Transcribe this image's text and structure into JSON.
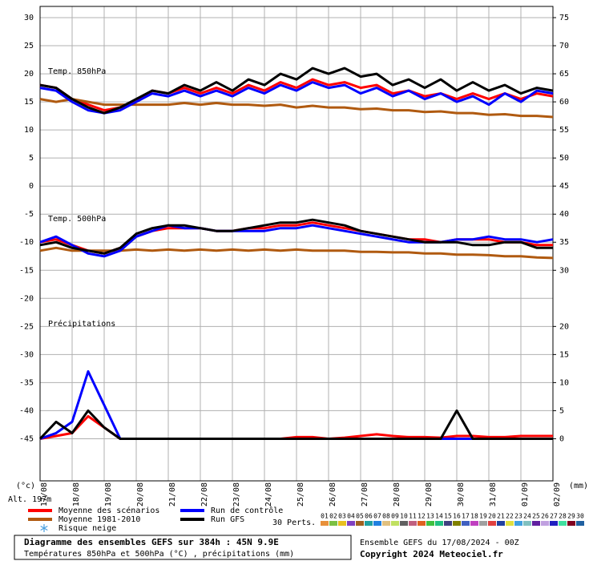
{
  "chart_data": {
    "type": "line",
    "panel_labels": {
      "t850": "Temp. 850hPa",
      "t500": "Temp. 500hPa",
      "precip": "Précipitations"
    },
    "x": [
      0,
      12,
      24,
      36,
      48,
      60,
      72,
      84,
      96,
      108,
      120,
      132,
      144,
      156,
      168,
      180,
      192,
      204,
      216,
      228,
      240,
      252,
      264,
      276,
      288,
      300,
      312,
      324,
      336,
      348,
      360,
      372,
      384
    ],
    "xlim": [
      0,
      384
    ],
    "xticks": [
      {
        "value": 0,
        "label": "17/08"
      },
      {
        "value": 24,
        "label": "18/08"
      },
      {
        "value": 48,
        "label": "19/08"
      },
      {
        "value": 72,
        "label": "20/08"
      },
      {
        "value": 96,
        "label": "21/08"
      },
      {
        "value": 120,
        "label": "22/08"
      },
      {
        "value": 144,
        "label": "23/08"
      },
      {
        "value": 168,
        "label": "24/08"
      },
      {
        "value": 192,
        "label": "25/08"
      },
      {
        "value": 216,
        "label": "26/08"
      },
      {
        "value": 240,
        "label": "27/08"
      },
      {
        "value": 264,
        "label": "28/08"
      },
      {
        "value": 288,
        "label": "29/08"
      },
      {
        "value": 312,
        "label": "30/08"
      },
      {
        "value": 336,
        "label": "31/08"
      },
      {
        "value": 360,
        "label": "01/09"
      },
      {
        "value": 384,
        "label": "02/09"
      }
    ],
    "ylim": [
      -52.5,
      32
    ],
    "yticks": [
      30,
      25,
      20,
      15,
      10,
      5,
      0,
      -5,
      -10,
      -15,
      -20,
      -25,
      -30,
      -35,
      -40,
      -45
    ],
    "y2lim": [
      -7.5,
      77
    ],
    "y2ticks": [
      75,
      70,
      65,
      60,
      55,
      50,
      45,
      40,
      35,
      30,
      20,
      15,
      10,
      5,
      0
    ],
    "ylabel": "(°c)",
    "y2label": "(mm)",
    "grid": true,
    "series": [
      {
        "name": "Moyenne des scénarios",
        "color": "#ff0000",
        "t850": [
          18,
          17.5,
          15.5,
          14.5,
          13.5,
          14,
          15,
          17,
          16.5,
          17.5,
          16.5,
          17.5,
          16.5,
          18,
          17,
          18.5,
          17.5,
          19,
          18,
          18.5,
          17.5,
          18,
          16.5,
          17,
          16,
          16.5,
          15.5,
          16.5,
          15.5,
          16.5,
          15.5,
          16.5,
          16
        ],
        "t500": [
          -10,
          -9.5,
          -10.5,
          -11.5,
          -12,
          -11,
          -9,
          -8,
          -7.5,
          -7.5,
          -7.5,
          -8,
          -8,
          -7.5,
          -7.5,
          -7,
          -7,
          -6.5,
          -7,
          -7.5,
          -8,
          -8.5,
          -9,
          -9.5,
          -9.5,
          -10,
          -9.5,
          -9.5,
          -9.5,
          -10,
          -10,
          -10.5,
          -10.5
        ],
        "precip": [
          0,
          0.5,
          1,
          4,
          2,
          0,
          0,
          0,
          0,
          0,
          0,
          0,
          0,
          0,
          0,
          0,
          0.3,
          0.3,
          0,
          0.2,
          0.5,
          0.8,
          0.5,
          0.3,
          0.3,
          0.2,
          0.5,
          0.5,
          0.3,
          0.3,
          0.5,
          0.5,
          0.5
        ]
      },
      {
        "name": "Moyenne 1981-2010",
        "color": "#b05a10",
        "t850": [
          15.5,
          15,
          15.5,
          15,
          14.5,
          14.5,
          14.5,
          14.5,
          14.5,
          14.8,
          14.5,
          14.8,
          14.5,
          14.5,
          14.3,
          14.5,
          14,
          14.3,
          14,
          14,
          13.7,
          13.8,
          13.5,
          13.5,
          13.2,
          13.3,
          13,
          13,
          12.7,
          12.8,
          12.5,
          12.5,
          12.3
        ],
        "t500": [
          -11.5,
          -11,
          -11.5,
          -11.5,
          -11.5,
          -11.5,
          -11.3,
          -11.5,
          -11.3,
          -11.5,
          -11.3,
          -11.5,
          -11.3,
          -11.5,
          -11.3,
          -11.5,
          -11.3,
          -11.5,
          -11.5,
          -11.5,
          -11.7,
          -11.7,
          -11.8,
          -11.8,
          -12,
          -12,
          -12.2,
          -12.2,
          -12.3,
          -12.5,
          -12.5,
          -12.7,
          -12.8
        ]
      },
      {
        "name": "Run de contrôle",
        "color": "#0000ff",
        "t850": [
          17.5,
          17,
          15,
          13.5,
          13,
          13.5,
          15,
          16.5,
          16,
          17,
          16,
          17,
          16,
          17.5,
          16.5,
          18,
          17,
          18.5,
          17.5,
          18,
          16.5,
          17.5,
          16,
          17,
          15.5,
          16.5,
          15,
          16,
          14.5,
          16.5,
          15,
          17,
          16.5
        ],
        "t500": [
          -10,
          -9,
          -10.5,
          -12,
          -12.5,
          -11.5,
          -9,
          -8,
          -7,
          -7.5,
          -7.5,
          -8,
          -8,
          -8,
          -8,
          -7.5,
          -7.5,
          -7,
          -7.5,
          -8,
          -8.5,
          -9,
          -9.5,
          -10,
          -10,
          -10,
          -9.5,
          -9.5,
          -9,
          -9.5,
          -9.5,
          -10,
          -9.5
        ],
        "precip": [
          0,
          1,
          3,
          12,
          6,
          0,
          0,
          0,
          0,
          0,
          0,
          0,
          0,
          0,
          0,
          0,
          0,
          0,
          0,
          0,
          0,
          0,
          0,
          0,
          0,
          0,
          0,
          0,
          0,
          0,
          0,
          0,
          0
        ]
      },
      {
        "name": "Run GFS",
        "color": "#000000",
        "t850": [
          18,
          17.5,
          15.5,
          14,
          13,
          14,
          15.5,
          17,
          16.5,
          18,
          17,
          18.5,
          17,
          19,
          18,
          20,
          19,
          21,
          20,
          21,
          19.5,
          20,
          18,
          19,
          17.5,
          19,
          17,
          18.5,
          17,
          18,
          16.5,
          17.5,
          17
        ],
        "t500": [
          -10.5,
          -10,
          -11,
          -11.5,
          -12,
          -11,
          -8.5,
          -7.5,
          -7,
          -7,
          -7.5,
          -8,
          -8,
          -7.5,
          -7,
          -6.5,
          -6.5,
          -6,
          -6.5,
          -7,
          -8,
          -8.5,
          -9,
          -9.5,
          -10,
          -10,
          -10,
          -10.5,
          -10.5,
          -10,
          -10,
          -11,
          -11
        ],
        "precip": [
          0,
          3,
          1,
          5,
          2,
          0,
          0,
          0,
          0,
          0,
          0,
          0,
          0,
          0,
          0,
          0,
          0,
          0,
          0,
          0,
          0,
          0,
          0,
          0,
          0,
          0,
          5,
          0,
          0,
          0,
          0,
          0,
          0
        ]
      }
    ],
    "snow_legend": "Risque neige",
    "altitude": "Alt. 197m",
    "perturbations": {
      "label": "30 Perts.",
      "members": [
        {
          "name": "01",
          "color": "#e8903a"
        },
        {
          "name": "02",
          "color": "#7bc043"
        },
        {
          "name": "03",
          "color": "#e8c020"
        },
        {
          "name": "04",
          "color": "#8040c0"
        },
        {
          "name": "05",
          "color": "#a06020"
        },
        {
          "name": "06",
          "color": "#20a0a0"
        },
        {
          "name": "07",
          "color": "#2080e0"
        },
        {
          "name": "08",
          "color": "#e0c080"
        },
        {
          "name": "09",
          "color": "#c0e060"
        },
        {
          "name": "10",
          "color": "#606060"
        },
        {
          "name": "11",
          "color": "#c06080"
        },
        {
          "name": "12",
          "color": "#e06020"
        },
        {
          "name": "13",
          "color": "#40c040"
        },
        {
          "name": "14",
          "color": "#20c080"
        },
        {
          "name": "15",
          "color": "#404080"
        },
        {
          "name": "16",
          "color": "#808000"
        },
        {
          "name": "17",
          "color": "#4060c0"
        },
        {
          "name": "18",
          "color": "#c040c0"
        },
        {
          "name": "19",
          "color": "#a0a0a0"
        },
        {
          "name": "20",
          "color": "#e04040"
        },
        {
          "name": "21",
          "color": "#2040a0"
        },
        {
          "name": "22",
          "color": "#e0e040"
        },
        {
          "name": "23",
          "color": "#40a0e0"
        },
        {
          "name": "24",
          "color": "#80c0c0"
        },
        {
          "name": "25",
          "color": "#6020a0"
        },
        {
          "name": "26",
          "color": "#c0a0e0"
        },
        {
          "name": "27",
          "color": "#2020c0"
        },
        {
          "name": "28",
          "color": "#40e0a0"
        },
        {
          "name": "29",
          "color": "#800020"
        },
        {
          "name": "30",
          "color": "#2060a0"
        }
      ]
    },
    "footer": {
      "title": "Diagramme des ensembles GEFS sur 384h : 45N 9.9E",
      "subtitle": "Températures 850hPa et 500hPa (°C) , précipitations (mm)",
      "run": "Ensemble GEFS du 17/08/2024 - 00Z",
      "copyright": "Copyright 2024 Meteociel.fr"
    }
  }
}
